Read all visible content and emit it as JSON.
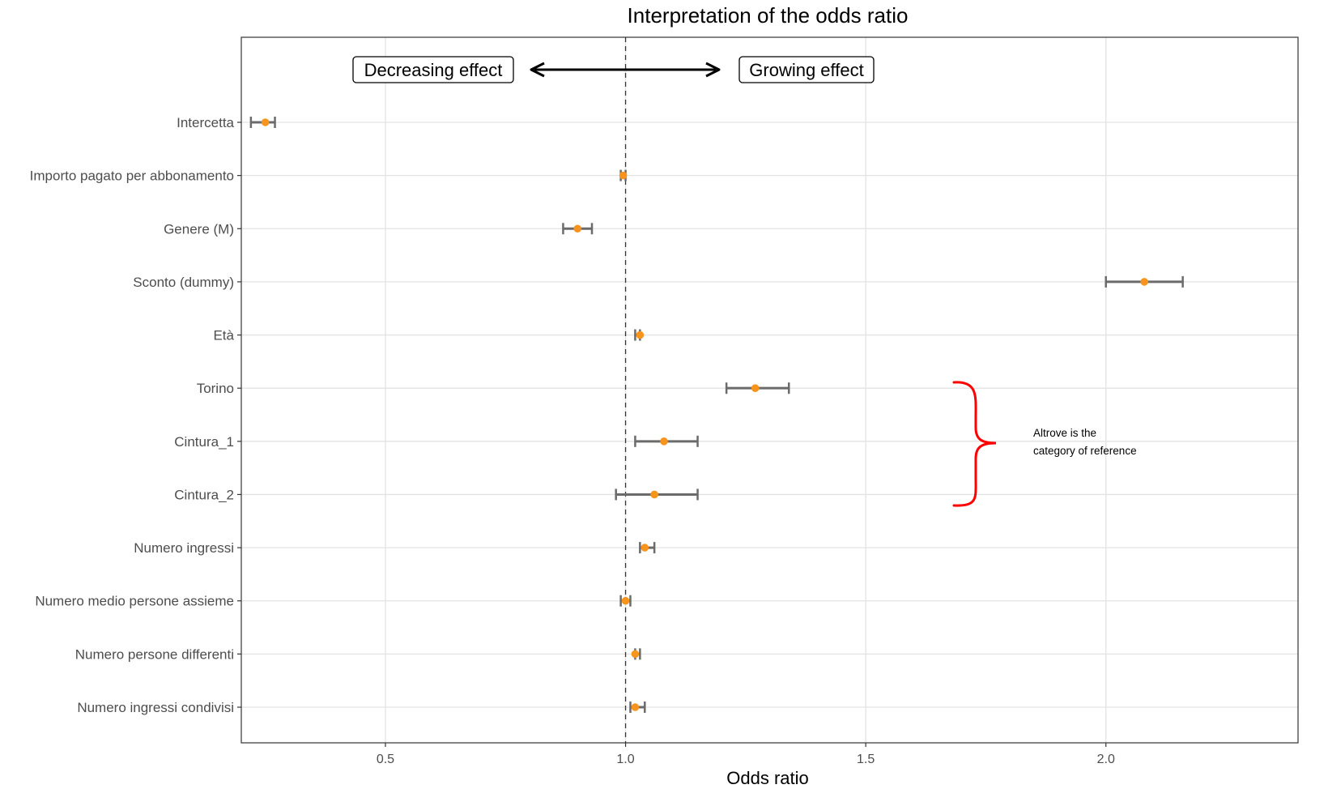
{
  "chart_data": {
    "type": "forest",
    "title": "Interpretation of the odds ratio",
    "xlabel": "Odds ratio",
    "ylabel": "",
    "xlim": [
      0.2,
      2.4
    ],
    "xticks": [
      0.5,
      1.0,
      1.5,
      2.0
    ],
    "xtick_labels": [
      "0.5",
      "1.0",
      "1.5",
      "2.0"
    ],
    "reference_line": 1.0,
    "grid": true,
    "point_color": "#F7941D",
    "errorbar_color": "#6b6b6b",
    "rows": [
      {
        "label": "Intercetta",
        "estimate": 0.25,
        "lower": 0.22,
        "upper": 0.27
      },
      {
        "label": "Importo pagato per abbonamento",
        "estimate": 0.995,
        "lower": 0.99,
        "upper": 1.0
      },
      {
        "label": "Genere (M)",
        "estimate": 0.9,
        "lower": 0.87,
        "upper": 0.93
      },
      {
        "label": "Sconto (dummy)",
        "estimate": 2.08,
        "lower": 2.0,
        "upper": 2.16
      },
      {
        "label": "Età",
        "estimate": 1.03,
        "lower": 1.02,
        "upper": 1.03
      },
      {
        "label": "Torino",
        "estimate": 1.27,
        "lower": 1.21,
        "upper": 1.34
      },
      {
        "label": "Cintura_1",
        "estimate": 1.08,
        "lower": 1.02,
        "upper": 1.15
      },
      {
        "label": "Cintura_2",
        "estimate": 1.06,
        "lower": 0.98,
        "upper": 1.15
      },
      {
        "label": "Numero ingressi",
        "estimate": 1.04,
        "lower": 1.03,
        "upper": 1.06
      },
      {
        "label": "Numero medio persone assieme",
        "estimate": 1.0,
        "lower": 0.99,
        "upper": 1.01
      },
      {
        "label": "Numero persone differenti",
        "estimate": 1.02,
        "lower": 1.02,
        "upper": 1.03
      },
      {
        "label": "Numero ingressi condivisi",
        "estimate": 1.02,
        "lower": 1.01,
        "upper": 1.04
      }
    ],
    "annotations": {
      "decreasing": "Decreasing effect",
      "growing": "Growing effect",
      "brace_note_line1": "Altrove is the",
      "brace_note_line2": "category of reference",
      "brace_color": "#ff0000"
    }
  }
}
